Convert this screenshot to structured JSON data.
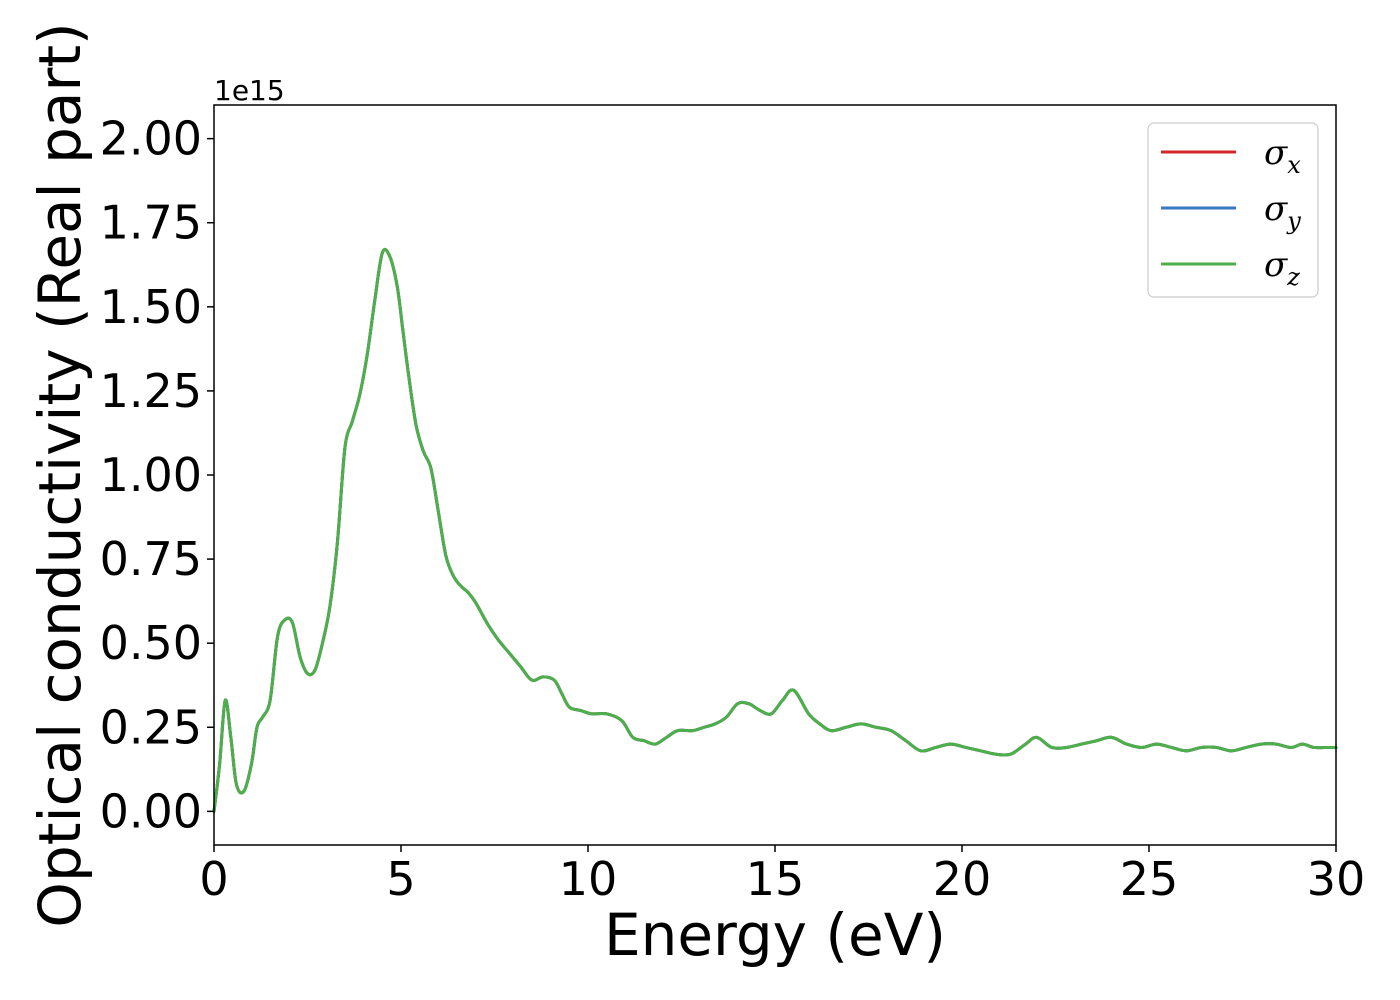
{
  "chart_data": {
    "type": "line",
    "xlabel": "Energy (eV)",
    "ylabel": "Optical conductivity (Real part)",
    "y_offset_label": "1e15",
    "xlim": [
      0,
      30
    ],
    "ylim": [
      -0.1,
      2.1
    ],
    "xticks": [
      0,
      5,
      10,
      15,
      20,
      25,
      30
    ],
    "xtick_labels": [
      "0",
      "5",
      "10",
      "15",
      "20",
      "25",
      "30"
    ],
    "yticks": [
      0.0,
      0.25,
      0.5,
      0.75,
      1.0,
      1.25,
      1.5,
      1.75,
      2.0
    ],
    "ytick_labels": [
      "0.00",
      "0.25",
      "0.50",
      "0.75",
      "1.00",
      "1.25",
      "1.50",
      "1.75",
      "2.00"
    ],
    "grid": false,
    "legend_position": "top-right",
    "x": [
      0.0,
      0.15,
      0.3,
      0.45,
      0.6,
      0.8,
      1.0,
      1.15,
      1.3,
      1.5,
      1.7,
      1.9,
      2.1,
      2.3,
      2.5,
      2.7,
      2.9,
      3.1,
      3.3,
      3.5,
      3.7,
      3.9,
      4.1,
      4.3,
      4.5,
      4.7,
      4.9,
      5.05,
      5.2,
      5.4,
      5.6,
      5.8,
      6.0,
      6.2,
      6.4,
      6.6,
      6.8,
      7.0,
      7.3,
      7.6,
      7.9,
      8.2,
      8.5,
      8.8,
      9.1,
      9.3,
      9.5,
      9.8,
      10.1,
      10.5,
      10.9,
      11.2,
      11.5,
      11.8,
      12.1,
      12.4,
      12.8,
      13.1,
      13.4,
      13.7,
      14.0,
      14.3,
      14.6,
      14.9,
      15.2,
      15.5,
      15.9,
      16.2,
      16.5,
      16.9,
      17.3,
      17.7,
      18.1,
      18.5,
      18.9,
      19.3,
      19.7,
      20.1,
      20.5,
      20.9,
      21.3,
      21.7,
      22.0,
      22.4,
      22.8,
      23.2,
      23.6,
      24.0,
      24.4,
      24.8,
      25.2,
      25.6,
      26.0,
      26.4,
      26.8,
      27.2,
      27.6,
      28.0,
      28.4,
      28.8,
      29.1,
      29.4,
      29.7,
      30.0
    ],
    "series": [
      {
        "name": "σx",
        "color": "#d62728",
        "values": [
          0.0,
          0.14,
          0.33,
          0.22,
          0.08,
          0.06,
          0.14,
          0.25,
          0.28,
          0.33,
          0.52,
          0.57,
          0.56,
          0.46,
          0.41,
          0.42,
          0.5,
          0.61,
          0.8,
          1.08,
          1.16,
          1.24,
          1.36,
          1.52,
          1.66,
          1.65,
          1.56,
          1.43,
          1.3,
          1.15,
          1.07,
          1.02,
          0.89,
          0.76,
          0.7,
          0.67,
          0.65,
          0.62,
          0.56,
          0.51,
          0.47,
          0.43,
          0.39,
          0.4,
          0.39,
          0.35,
          0.31,
          0.3,
          0.29,
          0.29,
          0.27,
          0.22,
          0.21,
          0.2,
          0.22,
          0.24,
          0.24,
          0.25,
          0.26,
          0.28,
          0.32,
          0.32,
          0.3,
          0.29,
          0.33,
          0.36,
          0.29,
          0.26,
          0.24,
          0.25,
          0.26,
          0.25,
          0.24,
          0.21,
          0.18,
          0.19,
          0.2,
          0.19,
          0.18,
          0.17,
          0.17,
          0.2,
          0.22,
          0.19,
          0.19,
          0.2,
          0.21,
          0.22,
          0.2,
          0.19,
          0.2,
          0.19,
          0.18,
          0.19,
          0.19,
          0.18,
          0.19,
          0.2,
          0.2,
          0.19,
          0.2,
          0.19,
          0.19,
          0.19
        ]
      },
      {
        "name": "σy",
        "color": "#3778bf",
        "values": [
          0.0,
          0.14,
          0.33,
          0.22,
          0.08,
          0.06,
          0.14,
          0.25,
          0.28,
          0.33,
          0.52,
          0.57,
          0.56,
          0.46,
          0.41,
          0.42,
          0.5,
          0.61,
          0.8,
          1.08,
          1.16,
          1.24,
          1.36,
          1.52,
          1.66,
          1.65,
          1.56,
          1.43,
          1.3,
          1.15,
          1.07,
          1.02,
          0.89,
          0.76,
          0.7,
          0.67,
          0.65,
          0.62,
          0.56,
          0.51,
          0.47,
          0.43,
          0.39,
          0.4,
          0.39,
          0.35,
          0.31,
          0.3,
          0.29,
          0.29,
          0.27,
          0.22,
          0.21,
          0.2,
          0.22,
          0.24,
          0.24,
          0.25,
          0.26,
          0.28,
          0.32,
          0.32,
          0.3,
          0.29,
          0.33,
          0.36,
          0.29,
          0.26,
          0.24,
          0.25,
          0.26,
          0.25,
          0.24,
          0.21,
          0.18,
          0.19,
          0.2,
          0.19,
          0.18,
          0.17,
          0.17,
          0.2,
          0.22,
          0.19,
          0.19,
          0.2,
          0.21,
          0.22,
          0.2,
          0.19,
          0.2,
          0.19,
          0.18,
          0.19,
          0.19,
          0.18,
          0.19,
          0.2,
          0.2,
          0.19,
          0.2,
          0.19,
          0.19,
          0.19
        ]
      },
      {
        "name": "σz",
        "color": "#4daf4a",
        "values": [
          0.0,
          0.14,
          0.33,
          0.22,
          0.08,
          0.06,
          0.14,
          0.25,
          0.28,
          0.33,
          0.52,
          0.57,
          0.56,
          0.46,
          0.41,
          0.42,
          0.5,
          0.61,
          0.8,
          1.08,
          1.16,
          1.24,
          1.36,
          1.52,
          1.66,
          1.65,
          1.56,
          1.43,
          1.3,
          1.15,
          1.07,
          1.02,
          0.89,
          0.76,
          0.7,
          0.67,
          0.65,
          0.62,
          0.56,
          0.51,
          0.47,
          0.43,
          0.39,
          0.4,
          0.39,
          0.35,
          0.31,
          0.3,
          0.29,
          0.29,
          0.27,
          0.22,
          0.21,
          0.2,
          0.22,
          0.24,
          0.24,
          0.25,
          0.26,
          0.28,
          0.32,
          0.32,
          0.3,
          0.29,
          0.33,
          0.36,
          0.29,
          0.26,
          0.24,
          0.25,
          0.26,
          0.25,
          0.24,
          0.21,
          0.18,
          0.19,
          0.2,
          0.19,
          0.18,
          0.17,
          0.17,
          0.2,
          0.22,
          0.19,
          0.19,
          0.2,
          0.21,
          0.22,
          0.2,
          0.19,
          0.2,
          0.19,
          0.18,
          0.19,
          0.19,
          0.18,
          0.19,
          0.2,
          0.2,
          0.19,
          0.2,
          0.19,
          0.19,
          0.19
        ]
      }
    ],
    "legend": [
      {
        "symbol": "σ",
        "subscript": "x",
        "color": "#d62728"
      },
      {
        "symbol": "σ",
        "subscript": "y",
        "color": "#3778bf"
      },
      {
        "symbol": "σ",
        "subscript": "z",
        "color": "#4daf4a"
      }
    ]
  }
}
